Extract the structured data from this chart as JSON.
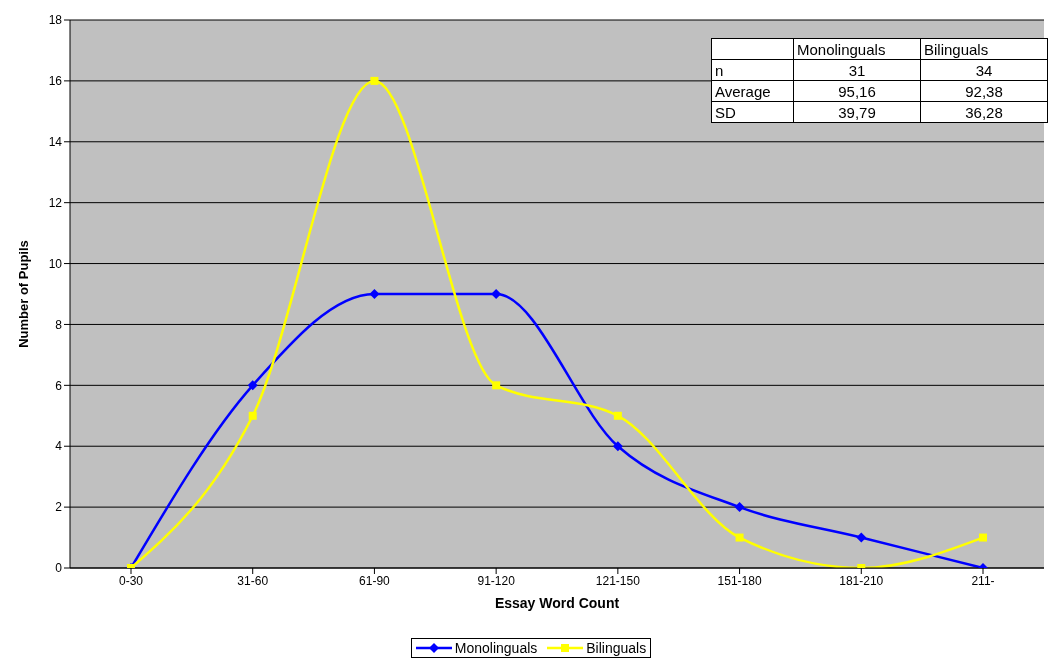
{
  "chart_data": {
    "type": "line",
    "xlabel": "Essay Word Count",
    "ylabel": "Number of Pupils",
    "categories": [
      "0-30",
      "31-60",
      "61-90",
      "91-120",
      "121-150",
      "151-180",
      "181-210",
      "211-"
    ],
    "series": [
      {
        "name": "Monolinguals",
        "color": "#0000ff",
        "marker": "diamond",
        "values": [
          0,
          6,
          9,
          9,
          4,
          2,
          1,
          0
        ]
      },
      {
        "name": "Bilinguals",
        "color": "#ffff00",
        "marker": "square",
        "values": [
          0,
          5,
          16,
          6,
          5,
          1,
          0,
          1
        ]
      }
    ],
    "ylim": [
      0,
      18
    ],
    "yticks": [
      0,
      2,
      4,
      6,
      8,
      10,
      12,
      14,
      16,
      18
    ],
    "grid": "y",
    "legend": "bottom",
    "annotations": [
      "Monolinguals",
      "Bilinguals",
      "n",
      "31",
      "34",
      "Average",
      "95,16",
      "92,38",
      "SD",
      "39,79",
      "36,28"
    ]
  }
}
